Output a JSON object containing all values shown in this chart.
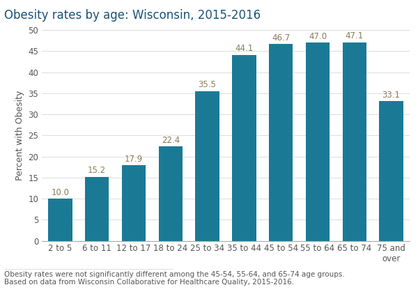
{
  "title": "Obesity rates by age: Wisconsin, 2015-2016",
  "categories": [
    "2 to 5",
    "6 to 11",
    "12 to 17",
    "18 to 24",
    "25 to 34",
    "35 to 44",
    "45 to 54",
    "55 to 64",
    "65 to 74",
    "75 and\nover"
  ],
  "values": [
    10.0,
    15.2,
    17.9,
    22.4,
    35.5,
    44.1,
    46.7,
    47.0,
    47.1,
    33.1
  ],
  "bar_color": "#1a7a96",
  "ylabel": "Percent with Obesity",
  "ylim": [
    0,
    50
  ],
  "yticks": [
    0,
    5,
    10,
    15,
    20,
    25,
    30,
    35,
    40,
    45,
    50
  ],
  "label_color": "#8c7a5a",
  "footnote_line1": "Obesity rates were not significantly different among the 45-54, 55-64, and 65-74 age groups.",
  "footnote_line2": "Based on data from Wisconsin Collaborative for Healthcare Quality, 2015-2016.",
  "title_fontsize": 12,
  "axis_label_fontsize": 9,
  "bar_label_fontsize": 8.5,
  "tick_fontsize": 8.5,
  "footnote_fontsize": 7.5,
  "title_color": "#1a5276",
  "footnote_color": "#555555",
  "background_color": "#ffffff"
}
